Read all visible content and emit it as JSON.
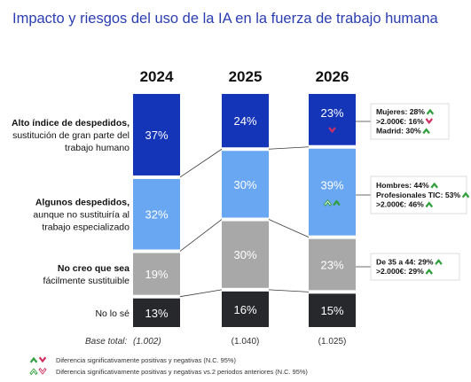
{
  "chart_data": {
    "type": "bar",
    "stacked": true,
    "title": "Impacto y riesgos del uso de la IA en la fuerza de trabajo humana",
    "categories": [
      "2024",
      "2025",
      "2026"
    ],
    "series": [
      {
        "name": [
          "Alto índice de despedidos,",
          "sustitución de gran parte del",
          "trabajo humano"
        ],
        "color": "#1535b8",
        "values": [
          37,
          24,
          23
        ],
        "labels": [
          "37%",
          "24%",
          "23%"
        ]
      },
      {
        "name": [
          "Algunos despedidos,",
          "aunque no sustituiría al",
          "trabajo especializado"
        ],
        "color": "#69a7f2",
        "values": [
          32,
          30,
          39
        ],
        "labels": [
          "32%",
          "30%",
          "39%"
        ]
      },
      {
        "name": [
          "No creo que sea",
          "fácilmente sustituible"
        ],
        "color": "#a8a8a8",
        "values": [
          19,
          30,
          23
        ],
        "labels": [
          "19%",
          "30%",
          "23%"
        ]
      },
      {
        "name": [
          "No lo sé"
        ],
        "color": "#26282b",
        "values": [
          13,
          16,
          15
        ],
        "labels": [
          "13%",
          "16%",
          "15%"
        ]
      }
    ],
    "base": {
      "label": "Base total:",
      "values": [
        "(1.002)",
        "(1.040)",
        "(1.025)"
      ]
    },
    "annotations": [
      {
        "series": 0,
        "lines": [
          {
            "text": "Mujeres: 28%",
            "arrow": "up"
          },
          {
            "text": ">2.000€: 16%",
            "arrow": "down"
          },
          {
            "text": "Madrid: 30%",
            "arrow": "up"
          }
        ]
      },
      {
        "series": 1,
        "lines": [
          {
            "text": "Hombres: 44%",
            "arrow": "up"
          },
          {
            "text": "Profesionales TIC: 53%",
            "arrow": "up"
          },
          {
            "text": ">2.000€: 46%",
            "arrow": "up"
          }
        ]
      },
      {
        "series": 2,
        "lines": [
          {
            "text": "De 35 a 44: 29%",
            "arrow": "up"
          },
          {
            "text": ">2.000€: 29%",
            "arrow": "up"
          }
        ]
      }
    ],
    "bar_markers": [
      {
        "category": 2,
        "series": 0,
        "arrows": [
          "down"
        ]
      },
      {
        "category": 2,
        "series": 1,
        "arrows": [
          "up-outline",
          "up"
        ]
      }
    ],
    "legend": [
      {
        "text": "Diferencia significativamente positivas y negativas (N.C. 95%)",
        "icons": [
          "up",
          "down"
        ]
      },
      {
        "text": "Diferencia significativamente positivas y negativas vs.2 periodos anteriores (N.C. 95%)",
        "icons": [
          "up-outline",
          "down-outline"
        ]
      }
    ],
    "colors": {
      "title": "#2a3db0",
      "arrow_up": "#2e9e3a",
      "arrow_down": "#d03060"
    }
  }
}
